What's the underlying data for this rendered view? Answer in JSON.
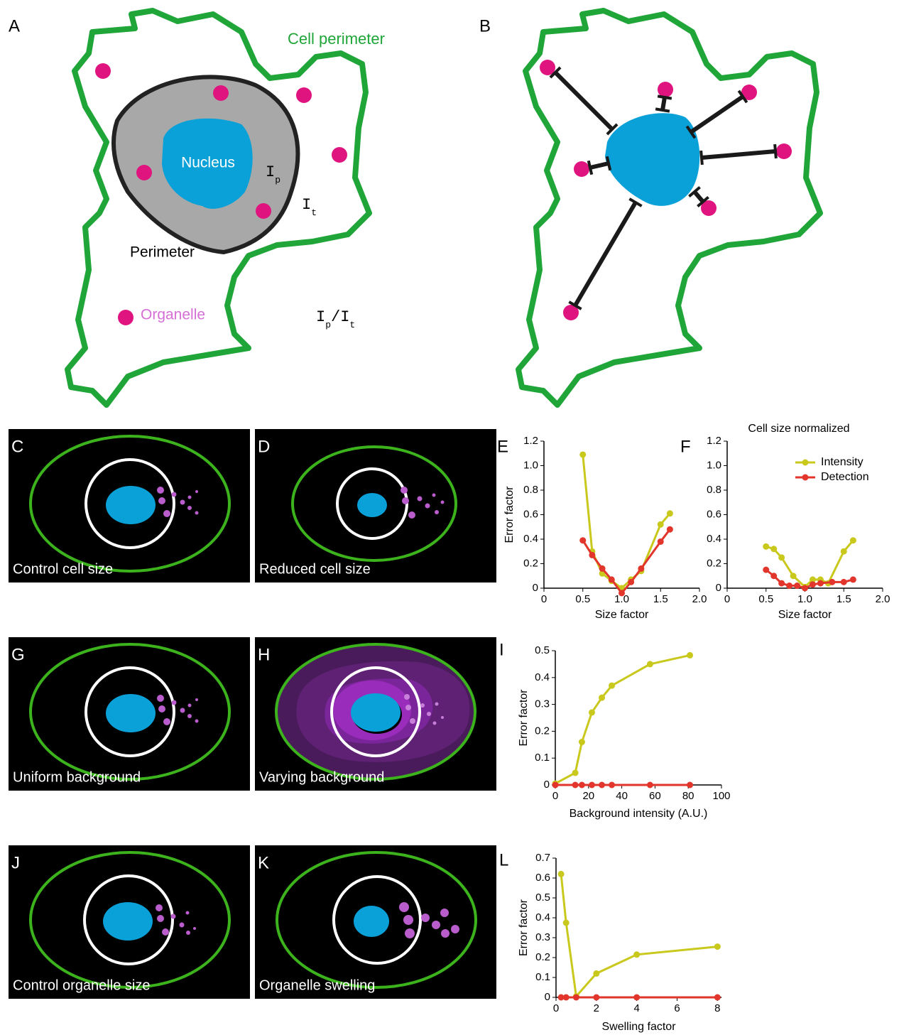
{
  "panel_a": {
    "letter": "A",
    "cell_perimeter": "Cell perimeter",
    "nucleus": "Nucleus",
    "perimeter": "Perimeter",
    "organelle": "Organelle",
    "intensity_perimeter": {
      "base": "I",
      "sub": "p"
    },
    "intensity_total": {
      "base": "I",
      "sub": "t"
    },
    "ratio": {
      "num_base": "I",
      "num_sub": "p",
      "slash": "/",
      "den_base": "I",
      "den_sub": "t"
    }
  },
  "panel_b": {
    "letter": "B"
  },
  "image_panels": [
    {
      "letter": "C",
      "caption": "Control cell size"
    },
    {
      "letter": "D",
      "caption": "Reduced cell size"
    },
    {
      "letter": "G",
      "caption": "Uniform background"
    },
    {
      "letter": "H",
      "caption": "Varying background"
    },
    {
      "letter": "J",
      "caption": "Control organelle size"
    },
    {
      "letter": "K",
      "caption": "Organelle swelling"
    }
  ],
  "chart_data": [
    {
      "type": "line",
      "letter": "E",
      "x_label": "Size factor",
      "y_label": "Error factor",
      "xlim": [
        0,
        2
      ],
      "xticks": [
        0,
        0.5,
        {
          "value": 1,
          "label": "1.0"
        },
        1.5,
        {
          "value": 2,
          "label": "2.0"
        }
      ],
      "ylim": [
        0,
        1.2
      ],
      "yticks": [
        0,
        0.2,
        0.4,
        0.6,
        0.8,
        {
          "value": 1,
          "label": "1.0"
        },
        1.2
      ],
      "series": [
        {
          "color": "#c9c81c",
          "x": [
            0.5,
            0.62,
            0.75,
            0.87,
            1.0,
            1.12,
            1.25,
            1.5,
            1.62
          ],
          "values": [
            1.09,
            0.3,
            0.12,
            0.06,
            0.0,
            0.07,
            0.14,
            0.52,
            0.61
          ]
        },
        {
          "color": "#e2352b",
          "x": [
            0.5,
            0.62,
            0.75,
            0.87,
            1.0,
            1.12,
            1.25,
            1.5,
            1.62
          ],
          "values": [
            0.39,
            0.27,
            0.16,
            0.07,
            -0.04,
            0.05,
            0.16,
            0.38,
            0.48
          ]
        }
      ]
    },
    {
      "type": "line",
      "letter": "F",
      "title": "Cell size normalized",
      "x_label": "Size factor",
      "xlim": [
        0,
        2
      ],
      "xticks": [
        0,
        0.5,
        {
          "value": 1,
          "label": "1.0"
        },
        1.5,
        {
          "value": 2,
          "label": "2.0"
        }
      ],
      "ylim": [
        0,
        1.2
      ],
      "yticks": [
        0,
        0.2,
        0.4,
        0.6,
        0.8,
        {
          "value": 1,
          "label": "1.0"
        },
        1.2
      ],
      "legend": "upper right",
      "series": [
        {
          "name": "Intensity",
          "color": "#c9c81c",
          "x": [
            0.5,
            0.6,
            0.7,
            0.85,
            1.0,
            1.1,
            1.2,
            1.3,
            1.5,
            1.62
          ],
          "values": [
            0.34,
            0.32,
            0.25,
            0.1,
            0.01,
            0.07,
            0.07,
            0.04,
            0.3,
            0.39
          ]
        },
        {
          "name": "Detection",
          "color": "#e2352b",
          "x": [
            0.5,
            0.6,
            0.7,
            0.8,
            0.9,
            1.0,
            1.1,
            1.2,
            1.35,
            1.5,
            1.62
          ],
          "values": [
            0.15,
            0.1,
            0.04,
            0.02,
            0.02,
            0.0,
            0.03,
            0.04,
            0.05,
            0.05,
            0.07
          ]
        }
      ]
    },
    {
      "type": "line",
      "letter": "I",
      "x_label": "Background intensity (A.U.)",
      "y_label": "Error factor",
      "xlim": [
        0,
        100
      ],
      "xticks": [
        0,
        20,
        40,
        60,
        80,
        100
      ],
      "ylim": [
        0,
        0.5
      ],
      "yticks": [
        0,
        0.1,
        0.2,
        0.3,
        0.4,
        0.5
      ],
      "series": [
        {
          "color": "#c9c81c",
          "x": [
            0,
            12,
            16,
            22,
            28,
            34,
            57,
            81
          ],
          "values": [
            0.005,
            0.045,
            0.16,
            0.27,
            0.325,
            0.37,
            0.45,
            0.483
          ]
        },
        {
          "color": "#e2352b",
          "x": [
            0,
            12,
            16,
            22,
            28,
            34,
            57,
            81
          ],
          "values": [
            0,
            0,
            0,
            0,
            0,
            0,
            0,
            0
          ]
        }
      ]
    },
    {
      "type": "line",
      "letter": "L",
      "x_label": "Swelling factor",
      "y_label": "Error factor",
      "xlim": [
        0,
        8.2
      ],
      "xticks": [
        0,
        2,
        4,
        6,
        8
      ],
      "ylim": [
        0,
        0.7
      ],
      "yticks": [
        0,
        0.1,
        0.2,
        0.3,
        0.4,
        0.5,
        0.6,
        0.7
      ],
      "series": [
        {
          "color": "#c9c81c",
          "x": [
            0.25,
            0.5,
            1,
            2,
            4,
            8
          ],
          "values": [
            0.62,
            0.375,
            0.005,
            0.12,
            0.215,
            0.255
          ]
        },
        {
          "color": "#e2352b",
          "x": [
            0.25,
            0.5,
            1,
            2,
            4,
            8
          ],
          "values": [
            0,
            0,
            0,
            0,
            0,
            0
          ]
        }
      ]
    }
  ]
}
